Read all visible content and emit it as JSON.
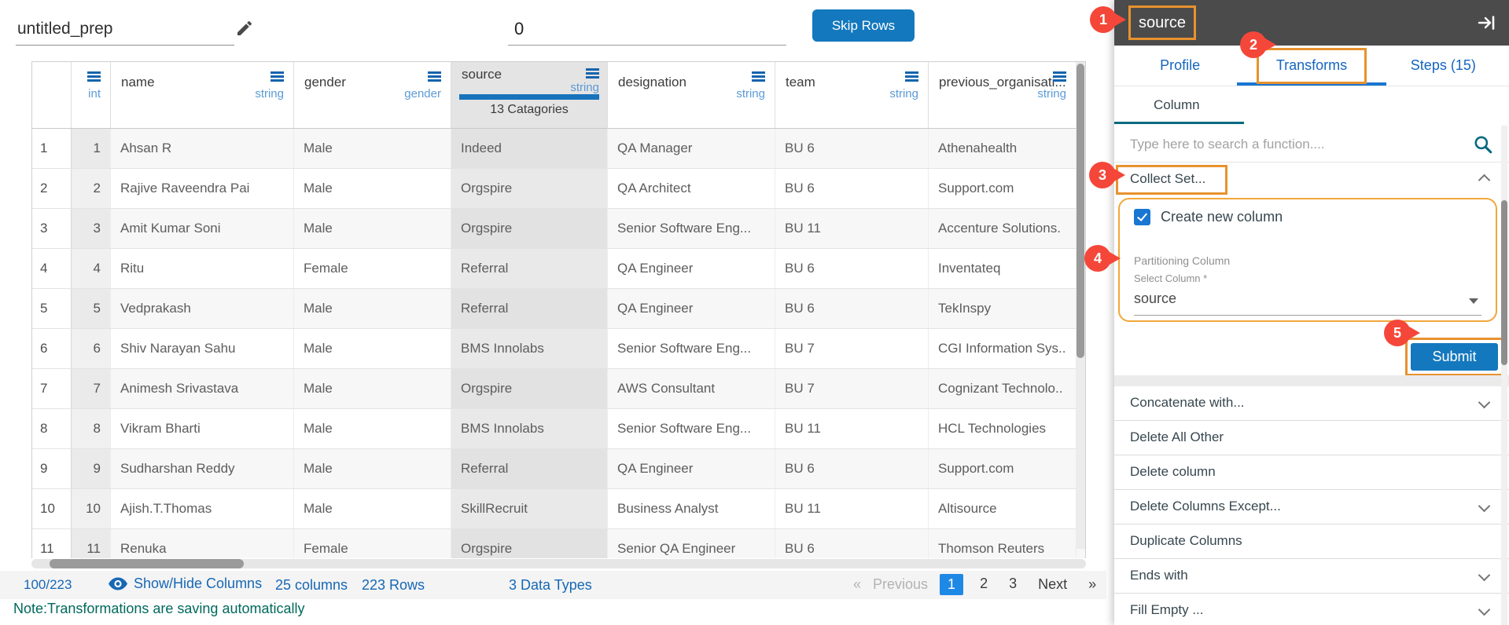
{
  "topbar": {
    "prep_name": "untitled_prep",
    "skip_rows_value": "0",
    "skip_rows_button": "Skip Rows"
  },
  "table": {
    "columns": [
      {
        "label": "",
        "type": "",
        "kind": "gutter"
      },
      {
        "label": "",
        "type": "int",
        "kind": "typeonly"
      },
      {
        "label": "name",
        "type": "string"
      },
      {
        "label": "gender",
        "type": "gender"
      },
      {
        "label": "source",
        "type": "string",
        "selected": true,
        "badge": "13 Catagories"
      },
      {
        "label": "designation",
        "type": "string"
      },
      {
        "label": "team",
        "type": "string"
      },
      {
        "label": "previous_organisati...",
        "type": "string"
      }
    ],
    "rows": [
      [
        "1",
        "1",
        "Ahsan R",
        "Male",
        "Indeed",
        "QA Manager",
        "BU 6",
        "Athenahealth"
      ],
      [
        "2",
        "2",
        "Rajive Raveendra Pai",
        "Male",
        "Orgspire",
        "QA Architect",
        "BU 6",
        "Support.com"
      ],
      [
        "3",
        "3",
        "Amit Kumar Soni",
        "Male",
        "Orgspire",
        "Senior Software Eng...",
        "BU 11",
        "Accenture Solutions."
      ],
      [
        "4",
        "4",
        "Ritu",
        "Female",
        "Referral",
        "QA Engineer",
        "BU 6",
        "Inventateq"
      ],
      [
        "5",
        "5",
        "Vedprakash",
        "Male",
        "Referral",
        "QA Engineer",
        "BU 6",
        "TekInspy"
      ],
      [
        "6",
        "6",
        "Shiv Narayan Sahu",
        "Male",
        "BMS Innolabs",
        "Senior Software Eng...",
        "BU 7",
        "CGI Information Sys.."
      ],
      [
        "7",
        "7",
        "Animesh Srivastava",
        "Male",
        "Orgspire",
        "AWS Consultant",
        "BU 7",
        "Cognizant Technolo.."
      ],
      [
        "8",
        "8",
        "Vikram Bharti",
        "Male",
        "BMS Innolabs",
        "Senior Software Eng...",
        "BU 11",
        "HCL Technologies"
      ],
      [
        "9",
        "9",
        "Sudharshan Reddy",
        "Male",
        "Referral",
        "QA Engineer",
        "BU 6",
        "Support.com"
      ],
      [
        "10",
        "10",
        "Ajish.T.Thomas",
        "Male",
        "SkillRecruit",
        "Business Analyst",
        "BU 11",
        "Altisource"
      ],
      [
        "11",
        "11",
        "Renuka",
        "Female",
        "Orgspire",
        "Senior QA Engineer",
        "BU 6",
        "Thomson Reuters"
      ]
    ]
  },
  "footer": {
    "count": "100/223",
    "show_hide": "Show/Hide Columns",
    "stats": {
      "columns": "25 columns",
      "rows": "223 Rows",
      "types": "3 Data Types"
    },
    "pagination": {
      "first": "«",
      "previous": "Previous",
      "pages": [
        "1",
        "2",
        "3"
      ],
      "active": "1",
      "next": "Next",
      "last": "»"
    },
    "note": "Note:Transformations are saving automatically"
  },
  "panel": {
    "header": {
      "column_name": "source"
    },
    "tabs": [
      {
        "label": "Profile",
        "active": false
      },
      {
        "label": "Transforms",
        "active": true
      },
      {
        "label": "Steps (15)",
        "active": false
      }
    ],
    "subtab": "Column",
    "search_placeholder": "Type here to search a function....",
    "collect_set": {
      "label": "Collect Set...",
      "create_new_column": "Create new column",
      "checked": true,
      "partitioning_label": "Partitioning Column",
      "select_label": "Select Column *",
      "selected_value": "source",
      "submit": "Submit"
    },
    "functions": [
      {
        "label": "Concatenate with...",
        "expandable": true
      },
      {
        "label": "Delete All Other",
        "expandable": false
      },
      {
        "label": "Delete column",
        "expandable": false
      },
      {
        "label": "Delete Columns Except...",
        "expandable": true
      },
      {
        "label": "Duplicate Columns",
        "expandable": false
      },
      {
        "label": "Ends with",
        "expandable": true
      },
      {
        "label": "Fill Empty ...",
        "expandable": true
      }
    ]
  },
  "annotations": [
    "1",
    "2",
    "3",
    "4",
    "5"
  ],
  "colors": {
    "button_blue": "#1478be",
    "link_blue": "#1668b5",
    "type_blue": "#5b9bd5",
    "active_page_blue": "#1e88e5",
    "tab_blue": "#1565c0",
    "annotation_orange": "#e8922e",
    "annotation_red": "#f4473a",
    "note_teal": "#00695c",
    "panel_header_gray": "#4b4b4b",
    "source_bar_blue": "#1773bc"
  }
}
